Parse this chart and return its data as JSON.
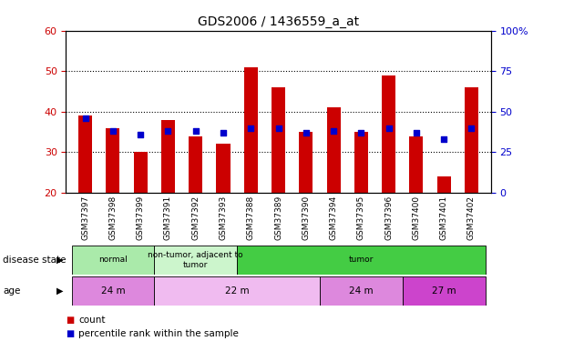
{
  "title": "GDS2006 / 1436559_a_at",
  "samples": [
    "GSM37397",
    "GSM37398",
    "GSM37399",
    "GSM37391",
    "GSM37392",
    "GSM37393",
    "GSM37388",
    "GSM37389",
    "GSM37390",
    "GSM37394",
    "GSM37395",
    "GSM37396",
    "GSM37400",
    "GSM37401",
    "GSM37402"
  ],
  "count_values": [
    39,
    36,
    30,
    38,
    34,
    32,
    51,
    46,
    35,
    41,
    35,
    49,
    34,
    24,
    46
  ],
  "percentile_values": [
    46,
    38,
    36,
    38,
    38,
    37,
    40,
    40,
    37,
    38,
    37,
    40,
    37,
    33,
    40
  ],
  "ylim_left": [
    20,
    60
  ],
  "ylim_right": [
    0,
    100
  ],
  "yticks_left": [
    20,
    30,
    40,
    50,
    60
  ],
  "yticks_right": [
    0,
    25,
    50,
    75,
    100
  ],
  "bar_color": "#cc0000",
  "dot_color": "#0000cc",
  "disease_state_groups": [
    {
      "label": "normal",
      "start": 0,
      "end": 3,
      "color": "#aaeaaa"
    },
    {
      "label": "non-tumor, adjacent to\ntumor",
      "start": 3,
      "end": 6,
      "color": "#ccf5cc"
    },
    {
      "label": "tumor",
      "start": 6,
      "end": 15,
      "color": "#44cc44"
    }
  ],
  "age_groups": [
    {
      "label": "24 m",
      "start": 0,
      "end": 3,
      "color": "#dd88dd"
    },
    {
      "label": "22 m",
      "start": 3,
      "end": 9,
      "color": "#f0bbf0"
    },
    {
      "label": "24 m",
      "start": 9,
      "end": 12,
      "color": "#dd88dd"
    },
    {
      "label": "27 m",
      "start": 12,
      "end": 15,
      "color": "#cc44cc"
    }
  ],
  "legend_count_label": "count",
  "legend_pct_label": "percentile rank within the sample",
  "disease_state_label": "disease state",
  "age_label": "age",
  "bg_color": "#ffffff",
  "tick_label_color_left": "#cc0000",
  "tick_label_color_right": "#0000cc"
}
